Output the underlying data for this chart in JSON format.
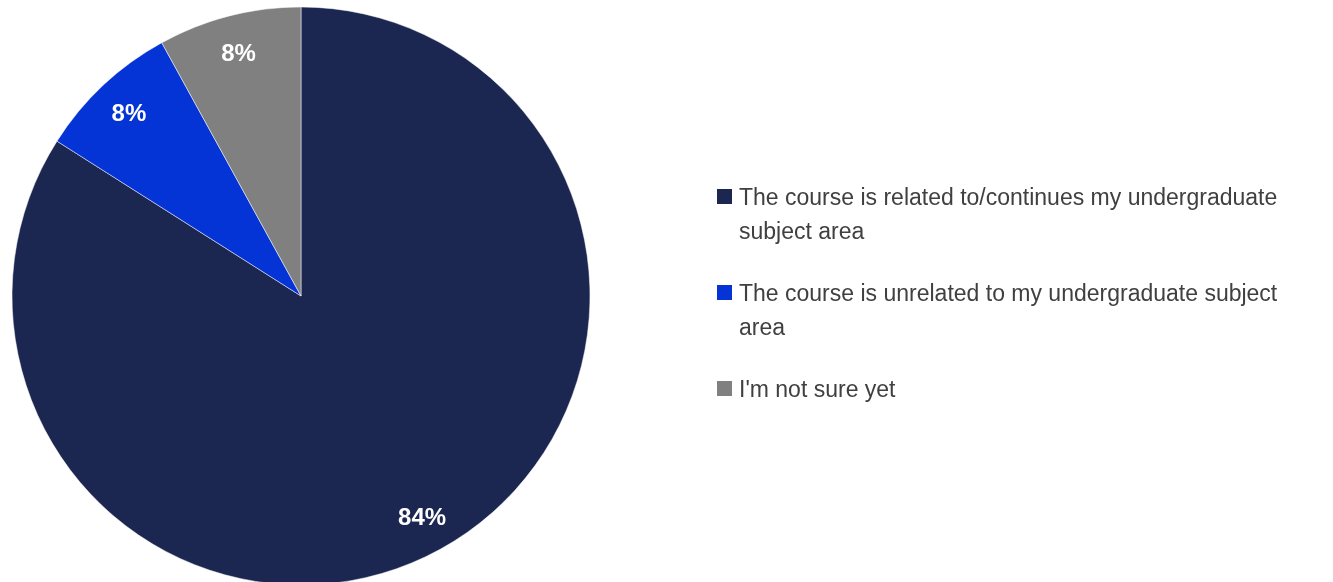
{
  "chart_data": {
    "type": "pie",
    "categories": [
      "The course is related to/continues my undergraduate subject area",
      "The course is unrelated to my undergraduate subject area",
      "I'm not sure yet"
    ],
    "values": [
      84,
      8,
      8
    ],
    "colors": [
      "#1b2651",
      "#0433d6",
      "#808080"
    ],
    "value_labels": [
      "84%",
      "8%",
      "8%"
    ],
    "legend": "right"
  }
}
